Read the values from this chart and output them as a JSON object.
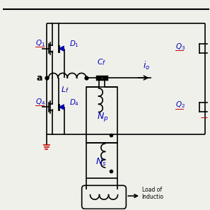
{
  "bg_color": "#f0f0eb",
  "line_color": "#000000",
  "blue_color": "#0000bb",
  "red_color": "#cc0000",
  "figsize": [
    2.97,
    2.97
  ],
  "dpi": 100,
  "xlim": [
    0,
    10
  ],
  "ylim": [
    0,
    10
  ]
}
